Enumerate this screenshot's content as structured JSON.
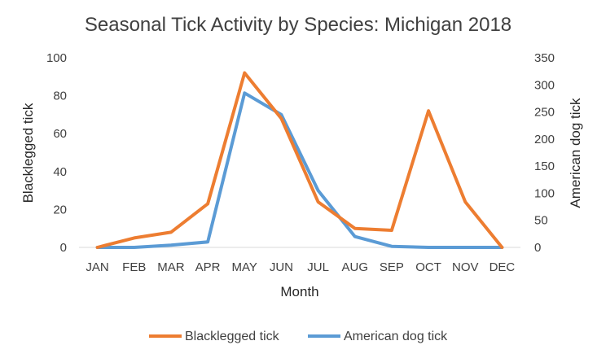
{
  "chart_data": {
    "type": "line",
    "title": "Seasonal Tick Activity by Species: Michigan 2018",
    "xlabel": "Month",
    "ylabel_left": "Blacklegged tick",
    "ylabel_right": "American dog tick",
    "categories": [
      "JAN",
      "FEB",
      "MAR",
      "APR",
      "MAY",
      "JUN",
      "JUL",
      "AUG",
      "SEP",
      "OCT",
      "NOV",
      "DEC"
    ],
    "y_left": {
      "min": 0,
      "max": 100,
      "ticks": [
        0,
        20,
        40,
        60,
        80,
        100
      ]
    },
    "y_right": {
      "min": 0,
      "max": 350,
      "ticks": [
        0,
        50,
        100,
        150,
        200,
        250,
        300,
        350
      ]
    },
    "grid": false,
    "legend_position": "bottom",
    "series": [
      {
        "name": "Blacklegged tick",
        "axis": "left",
        "color": "#ED7D31",
        "values": [
          0,
          5,
          8,
          23,
          92,
          68,
          24,
          10,
          9,
          72,
          24,
          0
        ]
      },
      {
        "name": "American dog tick",
        "axis": "right",
        "color": "#5B9BD5",
        "values": [
          0,
          0,
          4,
          10,
          285,
          245,
          105,
          20,
          2,
          0,
          0,
          0
        ]
      }
    ]
  }
}
